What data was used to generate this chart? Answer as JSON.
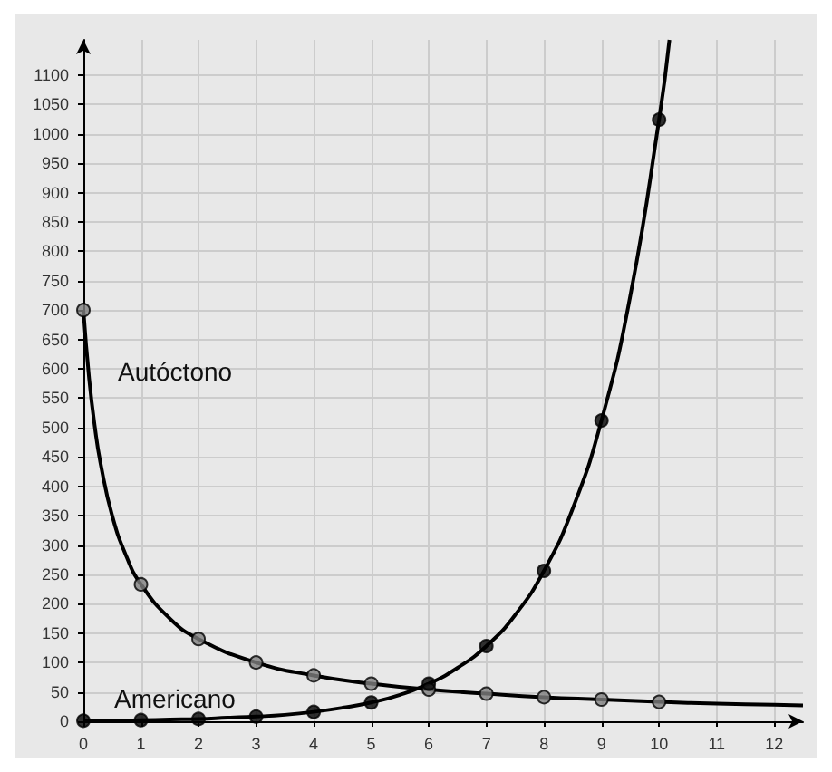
{
  "chart_data": {
    "type": "line",
    "xlim": [
      0,
      12.5
    ],
    "ylim": [
      0,
      1160
    ],
    "xticks": [
      0,
      1,
      2,
      3,
      4,
      5,
      6,
      7,
      8,
      9,
      10,
      11,
      12
    ],
    "yticks": [
      0,
      50,
      100,
      150,
      200,
      250,
      300,
      350,
      400,
      450,
      500,
      550,
      600,
      650,
      700,
      750,
      800,
      850,
      900,
      950,
      1000,
      1050,
      1100
    ],
    "grid": true,
    "legend": false,
    "series": [
      {
        "name": "Autóctono",
        "marker": "none",
        "color": "#000000",
        "x": [
          0,
          0.1,
          0.2,
          0.3,
          0.5,
          0.75,
          1,
          1.5,
          2,
          3,
          4,
          5,
          6,
          7,
          8,
          9,
          10,
          11,
          12,
          12.5
        ],
        "values": [
          700,
          583,
          500,
          438,
          350,
          280,
          233,
          175,
          140,
          100,
          78,
          64,
          54,
          47,
          41,
          37,
          33,
          30,
          28,
          27
        ]
      },
      {
        "name": "Americano",
        "marker": "none",
        "color": "#000000",
        "x": [
          0,
          0.5,
          1,
          1.5,
          2,
          2.5,
          3,
          3.5,
          4,
          4.5,
          5,
          5.5,
          6,
          6.5,
          7,
          7.5,
          8,
          8.5,
          9,
          9.5,
          10,
          10.18
        ],
        "values": [
          1,
          1,
          2,
          3,
          4,
          6,
          8,
          11,
          16,
          23,
          32,
          45,
          64,
          91,
          128,
          181,
          256,
          362,
          512,
          724,
          1024,
          1160
        ]
      },
      {
        "type": "scatter",
        "marker": "circle",
        "color": "#808080",
        "x": [
          0,
          1,
          2,
          3,
          4,
          5,
          6,
          7,
          8,
          9,
          10
        ],
        "values": [
          700,
          233,
          140,
          100,
          78,
          64,
          54,
          47,
          41,
          37,
          33
        ]
      },
      {
        "type": "scatter",
        "marker": "circle",
        "color": "#000000",
        "x": [
          0,
          1,
          2,
          3,
          4,
          5,
          6,
          7,
          8,
          9,
          10
        ],
        "values": [
          1,
          2,
          4,
          8,
          16,
          32,
          64,
          128,
          256,
          512,
          1024
        ]
      }
    ]
  }
}
